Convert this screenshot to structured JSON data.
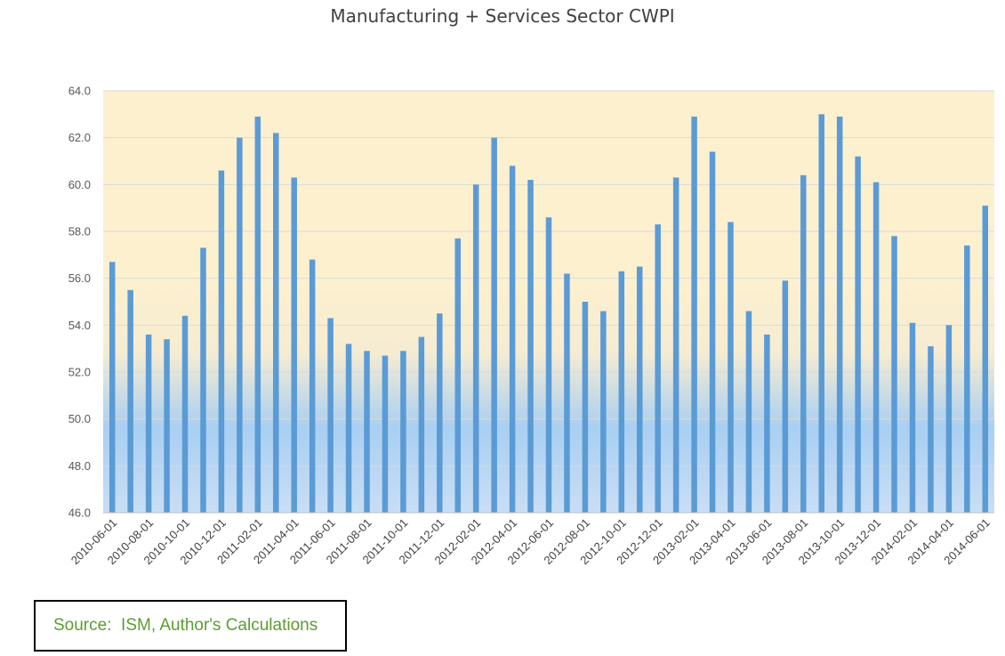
{
  "chart_data": {
    "type": "bar",
    "title": "Manufacturing + Services Sector CWPI",
    "xlabel": "",
    "ylabel": "",
    "ylim": [
      46.0,
      64.0
    ],
    "y_ticks": [
      "46.0",
      "48.0",
      "50.0",
      "52.0",
      "54.0",
      "56.0",
      "58.0",
      "60.0",
      "62.0",
      "64.0"
    ],
    "gridlines": true,
    "legend": "none",
    "categories": [
      "2010-06-01",
      "2010-07-01",
      "2010-08-01",
      "2010-09-01",
      "2010-10-01",
      "2010-11-01",
      "2010-12-01",
      "2011-01-01",
      "2011-02-01",
      "2011-03-01",
      "2011-04-01",
      "2011-05-01",
      "2011-06-01",
      "2011-07-01",
      "2011-08-01",
      "2011-09-01",
      "2011-10-01",
      "2011-11-01",
      "2011-12-01",
      "2012-01-01",
      "2012-02-01",
      "2012-03-01",
      "2012-04-01",
      "2012-05-01",
      "2012-06-01",
      "2012-07-01",
      "2012-08-01",
      "2012-09-01",
      "2012-10-01",
      "2012-11-01",
      "2012-12-01",
      "2013-01-01",
      "2013-02-01",
      "2013-03-01",
      "2013-04-01",
      "2013-05-01",
      "2013-06-01",
      "2013-07-01",
      "2013-08-01",
      "2013-09-01",
      "2013-10-01",
      "2013-11-01",
      "2013-12-01",
      "2014-01-01",
      "2014-02-01",
      "2014-03-01",
      "2014-04-01",
      "2014-05-01",
      "2014-06-01"
    ],
    "x_tick_labels": [
      "2010-06-01",
      "2010-08-01",
      "2010-10-01",
      "2010-12-01",
      "2011-02-01",
      "2011-04-01",
      "2011-06-01",
      "2011-08-01",
      "2011-10-01",
      "2011-12-01",
      "2012-02-01",
      "2012-04-01",
      "2012-06-01",
      "2012-08-01",
      "2012-10-01",
      "2012-12-01",
      "2013-02-01",
      "2013-04-01",
      "2013-06-01",
      "2013-08-01",
      "2013-10-01",
      "2013-12-01",
      "2014-02-01",
      "2014-04-01",
      "2014-06-01"
    ],
    "values": [
      56.7,
      55.5,
      53.6,
      53.4,
      54.4,
      57.3,
      60.6,
      62.0,
      62.9,
      62.2,
      60.3,
      56.8,
      54.3,
      53.2,
      52.9,
      52.7,
      52.9,
      53.5,
      54.5,
      57.7,
      60.0,
      62.0,
      60.8,
      60.2,
      58.6,
      56.2,
      55.0,
      54.6,
      56.3,
      56.5,
      58.3,
      60.3,
      62.9,
      61.4,
      58.4,
      54.6,
      53.6,
      55.9,
      60.4,
      63.0,
      62.9,
      61.2,
      60.1,
      57.8,
      54.1,
      53.1,
      54.0,
      57.4,
      59.1
    ],
    "colors": {
      "bar": "#5b9bd5",
      "plot_top": "#fdf0cf",
      "plot_mid": "#f6ecd2",
      "plot_bottom": "#a9cff2",
      "gridline": "#d9d9d9",
      "axis": "#bfbfbf"
    }
  },
  "source": {
    "text": "Source:  ISM, Author's Calculations"
  }
}
